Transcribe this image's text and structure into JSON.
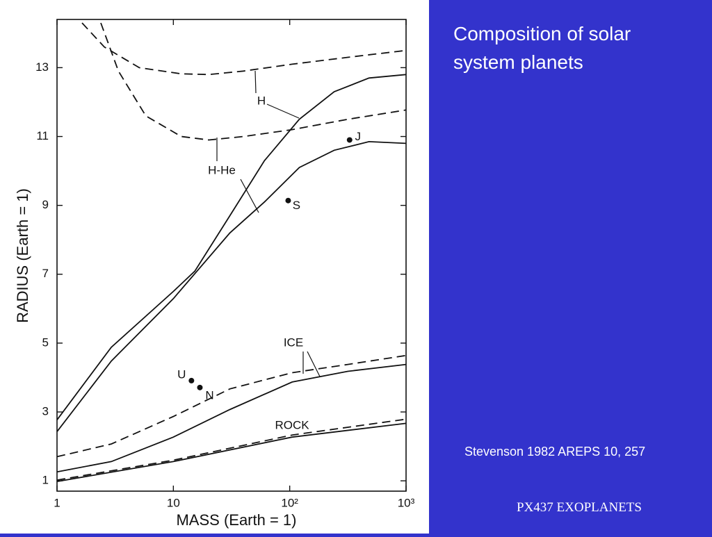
{
  "slide": {
    "title": "Composition of solar system planets",
    "citation": "Stevenson 1982 AREPS 10, 257",
    "footer": "PX437 EXOPLANETS"
  },
  "chart_data": {
    "type": "line",
    "x_label": "MASS (Earth = 1)",
    "y_label": "RADIUS (Earth = 1)",
    "xscale": "log",
    "xlim": [
      1,
      1000
    ],
    "ylim": [
      0.7,
      14.4
    ],
    "xticks": [
      1,
      10,
      {
        "value": 100,
        "label": "10²"
      },
      {
        "value": 1000,
        "label": "10³"
      }
    ],
    "yticks": [
      1,
      3,
      5,
      7,
      9,
      11,
      13
    ],
    "color": "#111111",
    "series": [
      {
        "style": "solid",
        "x": [
          1,
          2.93,
          10,
          15.3,
          30.6,
          60.7,
          121,
          241,
          480,
          1000
        ],
        "values": [
          2.77,
          4.88,
          6.5,
          7.09,
          8.7,
          10.3,
          11.5,
          12.3,
          12.7,
          12.8
        ]
      },
      {
        "style": "solid",
        "x": [
          1,
          2.93,
          10,
          30.6,
          60.7,
          121,
          241,
          480,
          1000
        ],
        "values": [
          2.43,
          4.48,
          6.29,
          8.2,
          9.1,
          10.1,
          10.6,
          10.85,
          10.8
        ]
      },
      {
        "style": "dashed",
        "x": [
          1.64,
          2.55,
          5.09,
          11.7,
          20.2,
          40,
          105,
          316,
          1000
        ],
        "values": [
          14.3,
          13.6,
          13.0,
          12.82,
          12.8,
          12.9,
          13.1,
          13.3,
          13.5
        ]
      },
      {
        "style": "dashed",
        "x": [
          2.38,
          3.37,
          5.8,
          11.7,
          20.2,
          40,
          105,
          316,
          1000
        ],
        "values": [
          14.3,
          12.9,
          11.6,
          11.0,
          10.9,
          11.0,
          11.2,
          11.5,
          11.77
        ]
      },
      {
        "style": "dashed",
        "x": [
          1,
          2.93,
          10,
          30.6,
          105,
          316,
          1000
        ],
        "values": [
          1.7,
          2.07,
          2.87,
          3.67,
          4.14,
          4.38,
          4.64
        ]
      },
      {
        "style": "solid",
        "x": [
          1,
          2.93,
          10,
          30.6,
          105,
          316,
          1000
        ],
        "values": [
          1.26,
          1.56,
          2.27,
          3.07,
          3.87,
          4.18,
          4.38
        ]
      },
      {
        "style": "dashed",
        "x": [
          1,
          10,
          105,
          1000
        ],
        "values": [
          1.02,
          1.6,
          2.33,
          2.79
        ]
      },
      {
        "style": "solid",
        "x": [
          1,
          10,
          105,
          1000
        ],
        "values": [
          0.98,
          1.56,
          2.27,
          2.67
        ]
      }
    ],
    "planets": {
      "labels": [
        "J",
        "S",
        "U",
        "N"
      ],
      "x": [
        327,
        97,
        14.3,
        16.9
      ],
      "values": [
        10.9,
        9.14,
        3.91,
        3.71
      ]
    },
    "annotations": [
      "H",
      "H-He",
      "ICE",
      "ROCK"
    ]
  }
}
